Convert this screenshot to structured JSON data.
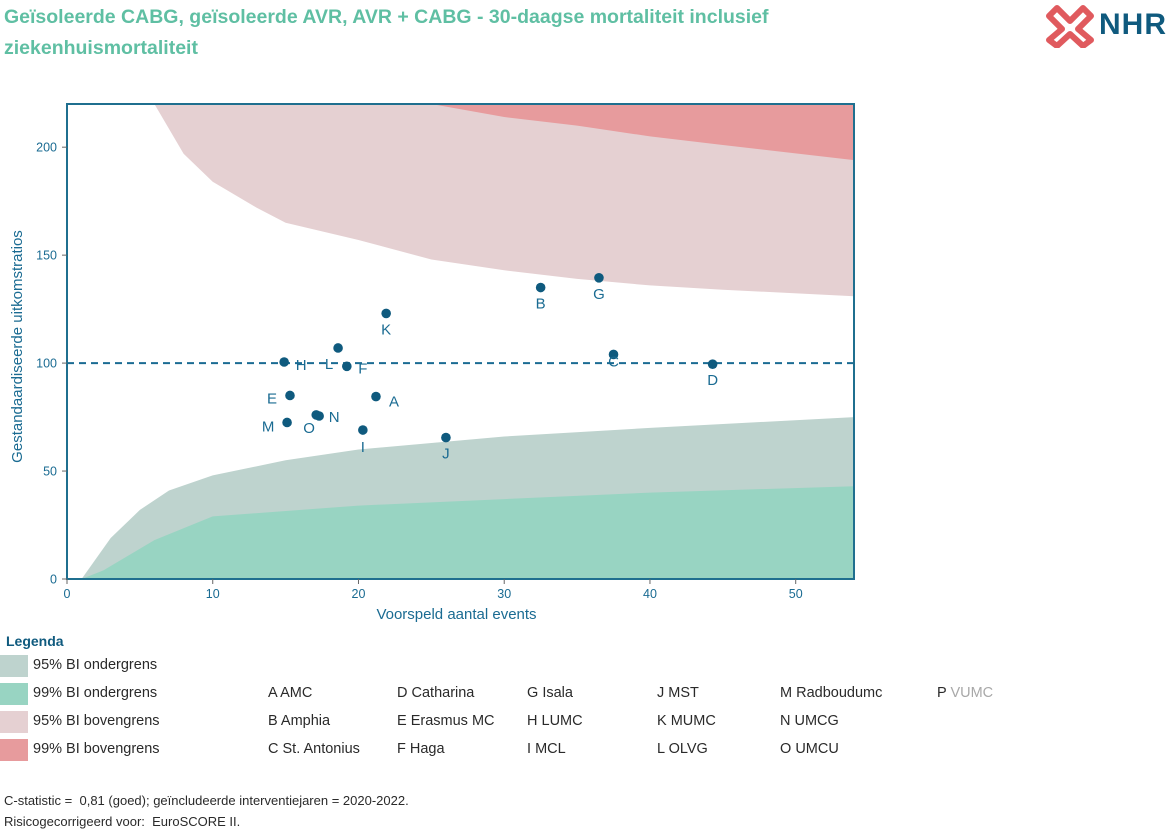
{
  "title": "Geïsoleerde CABG, geïsoleerde AVR, AVR + CABG - 30-daagse mortaliteit inclusief ziekenhuismortaliteit",
  "logo": {
    "text": "NHR",
    "icon": "nhr-cross-logo-icon",
    "colors": {
      "icon": "#e05a5e",
      "text": "#0f5a7e"
    }
  },
  "chart_data": {
    "type": "scatter",
    "subtype": "funnel-plot",
    "xlabel": "Voorspeld aantal events",
    "ylabel": "Gestandaardiseerde uitkomstratios",
    "xlim": [
      0,
      54
    ],
    "ylim": [
      0,
      220
    ],
    "x_ticks": [
      0,
      10,
      20,
      30,
      40,
      50
    ],
    "y_ticks": [
      0,
      50,
      100,
      150,
      200
    ],
    "grid": false,
    "reference_line": {
      "y": 100,
      "style": "dashed"
    },
    "points": [
      {
        "label": "A",
        "x": 21.2,
        "y": 84.5
      },
      {
        "label": "B",
        "x": 32.5,
        "y": 135
      },
      {
        "label": "C",
        "x": 37.5,
        "y": 104
      },
      {
        "label": "D",
        "x": 44.3,
        "y": 99.5
      },
      {
        "label": "E",
        "x": 15.3,
        "y": 85
      },
      {
        "label": "F",
        "x": 19.2,
        "y": 98.5
      },
      {
        "label": "G",
        "x": 36.5,
        "y": 139.5
      },
      {
        "label": "H",
        "x": 14.9,
        "y": 100.5
      },
      {
        "label": "I",
        "x": 20.3,
        "y": 69
      },
      {
        "label": "J",
        "x": 26.0,
        "y": 65.5
      },
      {
        "label": "K",
        "x": 21.9,
        "y": 123
      },
      {
        "label": "L",
        "x": 18.6,
        "y": 107
      },
      {
        "label": "M",
        "x": 15.1,
        "y": 72.5
      },
      {
        "label": "N",
        "x": 17.1,
        "y": 76
      },
      {
        "label": "O",
        "x": 17.3,
        "y": 75.5
      }
    ],
    "bands": {
      "lower95": {
        "x": [
          1,
          3,
          5,
          7,
          10,
          15,
          20,
          30,
          40,
          54
        ],
        "y": [
          0,
          19,
          32,
          41,
          48,
          55,
          60,
          66,
          70,
          75
        ]
      },
      "lower99": {
        "x": [
          1,
          2.5,
          4,
          6,
          10,
          20,
          30,
          40,
          54
        ],
        "y": [
          0,
          4,
          10,
          18,
          29,
          34,
          37,
          40,
          43
        ]
      },
      "upper95": {
        "x": [
          6,
          8,
          10,
          13,
          15,
          20,
          25,
          30,
          35,
          40,
          45,
          54
        ],
        "y": [
          220,
          197,
          184,
          172,
          165,
          157,
          148,
          143,
          139,
          136,
          134,
          131
        ]
      },
      "upper99": {
        "x": [
          25,
          30,
          35,
          40,
          45,
          54
        ],
        "y": [
          220,
          214,
          210,
          205,
          201,
          194
        ]
      }
    },
    "colors": {
      "lower95": "#bed3ce",
      "lower99": "#98d4c2",
      "upper95": "#e5d0d2",
      "upper99": "#e79b9d",
      "point": "#0f5a7e",
      "axis": "#1f6f8f",
      "label": "#1a6b92",
      "ref_line": "#1a6b92"
    }
  },
  "legend": {
    "title": "Legenda",
    "bands": [
      {
        "label": "95% BI ondergrens",
        "color": "#bed3ce"
      },
      {
        "label": "99% BI ondergrens",
        "color": "#98d4c2"
      },
      {
        "label": "95% BI bovengrens",
        "color": "#e5d0d2"
      },
      {
        "label": "99% BI bovengrens",
        "color": "#e79b9d"
      }
    ],
    "hospitals": [
      {
        "code": "A",
        "name": "AMC"
      },
      {
        "code": "B",
        "name": "Amphia"
      },
      {
        "code": "C",
        "name": "St. Antonius"
      },
      {
        "code": "D",
        "name": "Catharina"
      },
      {
        "code": "E",
        "name": "Erasmus MC"
      },
      {
        "code": "F",
        "name": "Haga"
      },
      {
        "code": "G",
        "name": "Isala"
      },
      {
        "code": "H",
        "name": "LUMC"
      },
      {
        "code": "I",
        "name": "MCL"
      },
      {
        "code": "J",
        "name": "MST"
      },
      {
        "code": "K",
        "name": "MUMC"
      },
      {
        "code": "L",
        "name": "OLVG"
      },
      {
        "code": "M",
        "name": "Radboudumc"
      },
      {
        "code": "N",
        "name": "UMCG"
      },
      {
        "code": "O",
        "name": "UMCU"
      },
      {
        "code": "P",
        "name": "VUMC",
        "muted": true
      }
    ]
  },
  "footnotes": {
    "line1": "C-statistic =  0,81 (goed); geïncludeerde interventiejaren = 2020-2022.",
    "line2": "Risicogecorrigeerd voor:  EuroSCORE II."
  }
}
